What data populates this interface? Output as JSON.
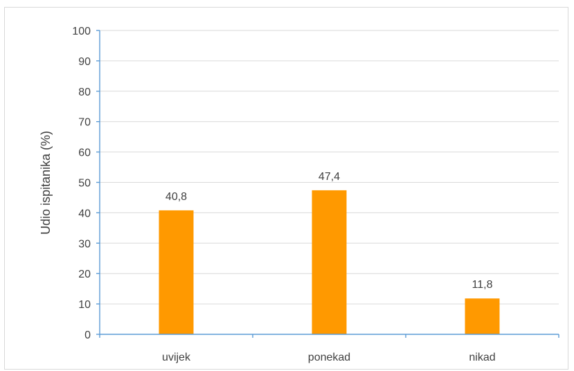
{
  "chart_data": {
    "type": "bar",
    "categories": [
      "uvijek",
      "ponekad",
      "nikad"
    ],
    "values": [
      40.8,
      47.4,
      11.8
    ],
    "data_labels": [
      "40,8",
      "47,4",
      "11,8"
    ],
    "title": "",
    "xlabel": "",
    "ylabel": "Udio ispitanika  (%)",
    "ylim": [
      0,
      100
    ],
    "yticks": [
      0,
      10,
      20,
      30,
      40,
      50,
      60,
      70,
      80,
      90,
      100
    ],
    "grid": true,
    "legend": "none",
    "bar_color": "#ff9900",
    "axis_color": "#5b9bd5",
    "grid_color": "#d9d9d9"
  }
}
